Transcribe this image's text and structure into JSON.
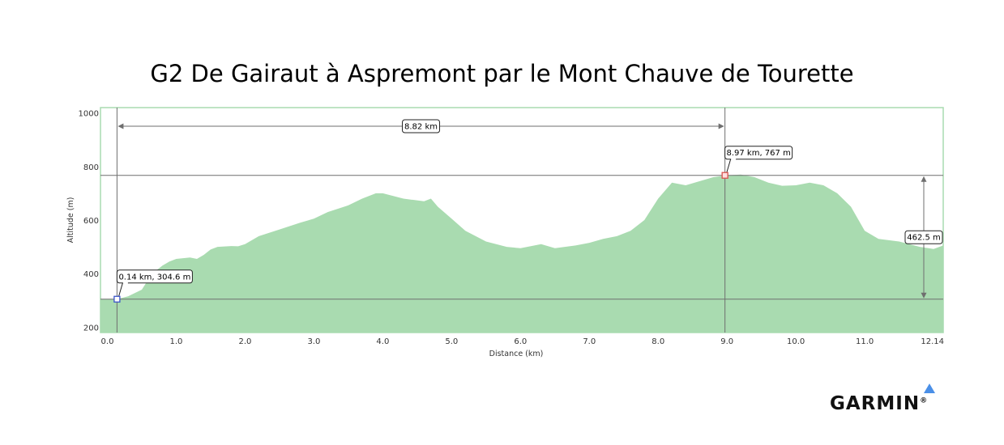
{
  "chart_data": {
    "type": "area",
    "title": "G2 De Gairaut à Aspremont par le Mont Chauve de Tourette",
    "xlabel": "Distance   (km)",
    "ylabel": "Altitude (m)",
    "xlim": [
      -0.1,
      12.14
    ],
    "ylim": [
      180,
      1020
    ],
    "x_ticks": [
      "0.0",
      "1.0",
      "2.0",
      "3.0",
      "4.0",
      "5.0",
      "6.0",
      "7.0",
      "8.0",
      "9.0",
      "10.0",
      "11.0",
      "12.14"
    ],
    "x_tick_values": [
      0,
      1,
      2,
      3,
      4,
      5,
      6,
      7,
      8,
      9,
      10,
      11,
      12.14
    ],
    "y_ticks": [
      "200",
      "400",
      "600",
      "800",
      "1000"
    ],
    "y_tick_values": [
      200,
      400,
      600,
      800,
      1000
    ],
    "fill_color": "#a9dbb0",
    "profile": {
      "x": [
        -0.1,
        0.14,
        0.3,
        0.5,
        0.6,
        0.7,
        0.8,
        0.9,
        1.0,
        1.2,
        1.3,
        1.4,
        1.5,
        1.6,
        1.8,
        1.9,
        2.0,
        2.2,
        2.5,
        2.8,
        3.0,
        3.2,
        3.5,
        3.7,
        3.9,
        4.0,
        4.3,
        4.6,
        4.7,
        4.8,
        5.0,
        5.2,
        5.5,
        5.8,
        6.0,
        6.3,
        6.5,
        6.8,
        7.0,
        7.2,
        7.4,
        7.6,
        7.8,
        8.0,
        8.2,
        8.4,
        8.6,
        8.8,
        9.0,
        9.2,
        9.4,
        9.6,
        9.8,
        10.0,
        10.2,
        10.4,
        10.6,
        10.8,
        11.0,
        11.2,
        11.5,
        11.8,
        12.0,
        12.14
      ],
      "y": [
        304.6,
        304.6,
        315,
        340,
        380,
        410,
        430,
        445,
        455,
        460,
        455,
        470,
        490,
        500,
        503,
        502,
        510,
        540,
        565,
        590,
        605,
        630,
        655,
        680,
        700,
        700,
        680,
        670,
        680,
        650,
        605,
        560,
        520,
        500,
        495,
        510,
        495,
        505,
        515,
        530,
        540,
        560,
        600,
        680,
        740,
        730,
        745,
        760,
        767,
        770,
        760,
        740,
        728,
        730,
        740,
        730,
        700,
        650,
        560,
        530,
        520,
        500,
        492,
        505
      ]
    },
    "markers": [
      {
        "x": 0.14,
        "y": 304.6,
        "label": "0.14 km, 304.6 m",
        "color": "#3b55c8"
      },
      {
        "x": 8.97,
        "y": 767,
        "label": "8.97 km, 767 m",
        "color": "#d9534f"
      }
    ],
    "distance_label": "8.82 km",
    "elevation_gain_label": "462.5 m",
    "grid": false
  },
  "branding": {
    "logo_text": "GARMIN",
    "logo_color": "#4a8fe7",
    "reg_mark": "®"
  }
}
